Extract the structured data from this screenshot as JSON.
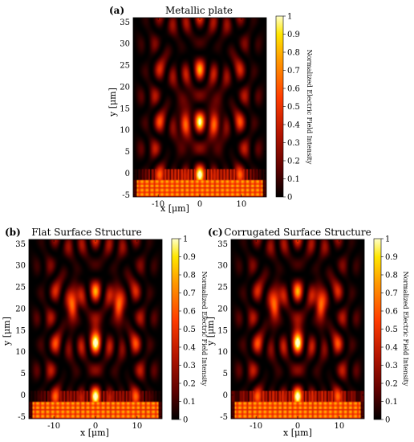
{
  "figure": {
    "colormap": [
      "#000000",
      "#5a0000",
      "#b41400",
      "#ff3c00",
      "#ff9600",
      "#ffe600",
      "#ffffc8"
    ]
  },
  "chart_data": [
    {
      "type": "heatmap",
      "panel_label": "(a)",
      "title": "Metallic plate",
      "xlabel": "x [μm]",
      "ylabel": "y [μm]",
      "xlim": [
        -16,
        16
      ],
      "ylim": [
        -5.5,
        36
      ],
      "x_ticks": [
        -10,
        0,
        10
      ],
      "y_ticks": [
        -5,
        0,
        5,
        10,
        15,
        20,
        25,
        30,
        35
      ],
      "colorbar": {
        "label": "Normalized Electric Field Intensity",
        "range": [
          0,
          1
        ],
        "ticks": [
          0,
          0.1,
          0.2,
          0.3,
          0.4,
          0.5,
          0.6,
          0.7,
          0.8,
          0.9,
          1
        ]
      },
      "structure": "metallic plate"
    },
    {
      "type": "heatmap",
      "panel_label": "(b)",
      "title": "Flat Surface Structure",
      "xlabel": "x [μm]",
      "ylabel": "y [μm]",
      "xlim": [
        -16,
        16
      ],
      "ylim": [
        -5.5,
        36
      ],
      "x_ticks": [
        -10,
        0,
        10
      ],
      "y_ticks": [
        -5,
        0,
        5,
        10,
        15,
        20,
        25,
        30,
        35
      ],
      "colorbar": {
        "label": "Normalized Electric Field Intensity",
        "range": [
          0,
          1
        ],
        "ticks": [
          0,
          0.1,
          0.2,
          0.3,
          0.4,
          0.5,
          0.6,
          0.7,
          0.8,
          0.9,
          1
        ]
      },
      "structure": "flat"
    },
    {
      "type": "heatmap",
      "panel_label": "(c)",
      "title": "Corrugated Surface Structure",
      "xlabel": "x [μm]",
      "ylabel": "y [μm]",
      "xlim": [
        -16,
        16
      ],
      "ylim": [
        -5.5,
        36
      ],
      "x_ticks": [
        -10,
        0,
        10
      ],
      "y_ticks": [
        -5,
        0,
        5,
        10,
        15,
        20,
        25,
        30,
        35
      ],
      "colorbar": {
        "label": "Normalized Electric Field Intensity",
        "range": [
          0,
          1
        ],
        "ticks": [
          0,
          0.1,
          0.2,
          0.3,
          0.4,
          0.5,
          0.6,
          0.7,
          0.8,
          0.9,
          1
        ]
      },
      "structure": "corrugated"
    }
  ]
}
